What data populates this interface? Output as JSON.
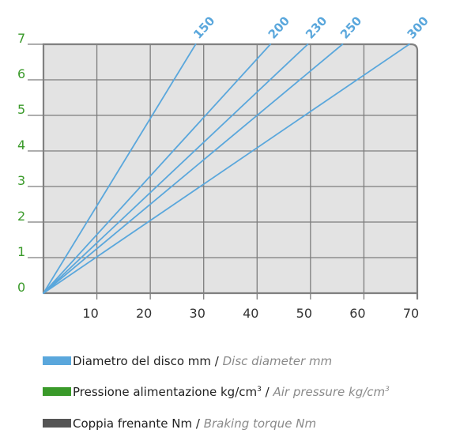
{
  "chart_data": {
    "type": "line",
    "xlim": [
      0,
      70
    ],
    "ylim": [
      0,
      7
    ],
    "x_ticks": [
      "10",
      "20",
      "30",
      "40",
      "50",
      "60",
      "70"
    ],
    "y_ticks": [
      "0",
      "1",
      "2",
      "3",
      "4",
      "5",
      "6",
      "7"
    ],
    "grid": true,
    "series": [
      {
        "name": "150",
        "points": [
          [
            0,
            0
          ],
          [
            28.5,
            7
          ]
        ]
      },
      {
        "name": "200",
        "points": [
          [
            0,
            0
          ],
          [
            42.5,
            7
          ]
        ]
      },
      {
        "name": "230",
        "points": [
          [
            0,
            0
          ],
          [
            49.5,
            7
          ]
        ]
      },
      {
        "name": "250",
        "points": [
          [
            0,
            0
          ],
          [
            56.0,
            7
          ]
        ]
      },
      {
        "name": "300",
        "points": [
          [
            0,
            0
          ],
          [
            68.5,
            7
          ]
        ]
      }
    ]
  },
  "colors": {
    "series": "#5aa7dc",
    "y_ticks": "#3a9a2a",
    "grid": "#7d7d7d",
    "plot_bg": "#e3e3e3",
    "frame": "#808080"
  },
  "legend": [
    {
      "color": "#5aa7dc",
      "it": "Diametro del disco mm",
      "sep": " / ",
      "en": "Disc diameter mm",
      "sup": ""
    },
    {
      "color": "#3a9a2a",
      "it": "Pressione alimentazione kg/cm",
      "sup": "3",
      "sep": " / ",
      "en": "Air pressure kg/cm",
      "en_sup": "3"
    },
    {
      "color": "#555555",
      "it": "Coppia frenante Nm",
      "sep": " / ",
      "en": "Braking torque Nm",
      "sup": ""
    }
  ]
}
